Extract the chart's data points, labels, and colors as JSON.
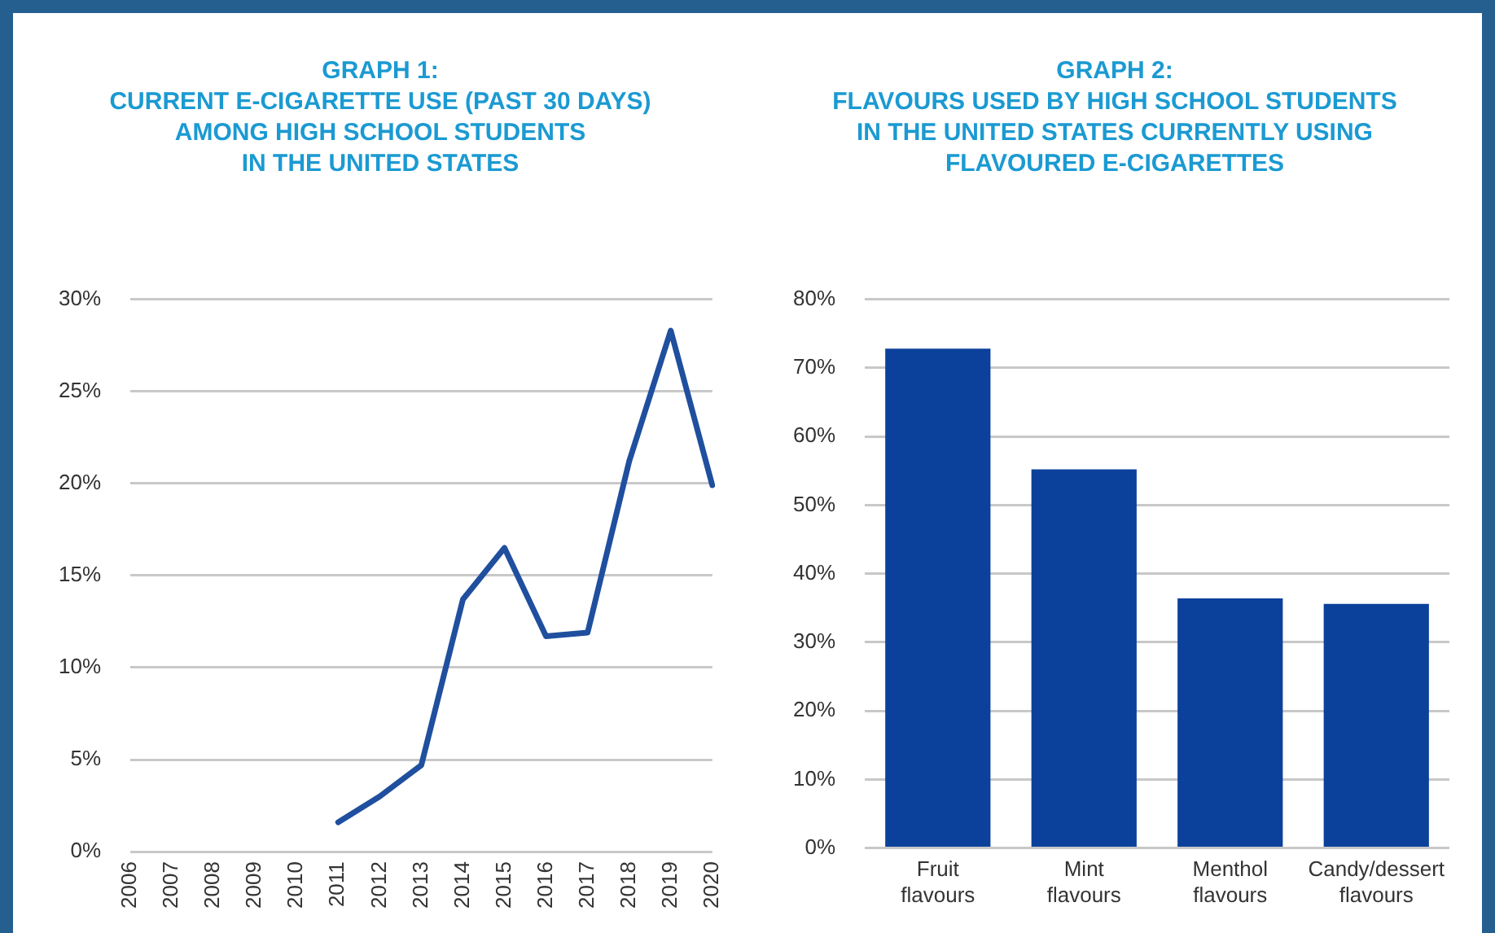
{
  "chart_data": [
    {
      "type": "line",
      "title": "GRAPH 1:\nCURRENT E-CIGARETTE USE (PAST 30 DAYS)\nAMONG HIGH SCHOOL STUDENTS\nIN THE UNITED STATES",
      "categories": [
        "2006",
        "2007",
        "2008",
        "2009",
        "2010",
        "2011",
        "2012",
        "2013",
        "2014",
        "2015",
        "2016",
        "2017",
        "2018",
        "2019",
        "2020"
      ],
      "series": [
        {
          "color": "#1f4f9e",
          "values": [
            null,
            null,
            null,
            null,
            null,
            1.6,
            3.0,
            4.7,
            13.7,
            16.5,
            11.7,
            11.9,
            21.2,
            28.3,
            19.9
          ]
        }
      ],
      "ylim": [
        0,
        30
      ],
      "yticks": [
        {
          "value": 0,
          "label": "0%"
        },
        {
          "value": 5,
          "label": "5%"
        },
        {
          "value": 10,
          "label": "10%"
        },
        {
          "value": 15,
          "label": "15%"
        },
        {
          "value": 20,
          "label": "20%"
        },
        {
          "value": 25,
          "label": "25%"
        },
        {
          "value": 30,
          "label": "30%"
        }
      ],
      "grid": "y",
      "marker": "none",
      "line_style": "solid"
    },
    {
      "type": "bar",
      "title": "GRAPH 2:\nFLAVOURS USED BY HIGH SCHOOL STUDENTS\nIN THE UNITED STATES CURRENTLY USING\nFLAVOURED E-CIGARETTES",
      "categories": [
        "Fruit\nflavours",
        "Mint\nflavours",
        "Menthol\nflavours",
        "Candy/dessert\nflavours"
      ],
      "series": [
        {
          "color": "#0b419b",
          "values": [
            72.8,
            55.2,
            36.4,
            35.6
          ]
        }
      ],
      "ylim": [
        0,
        80
      ],
      "yticks": [
        {
          "value": 0,
          "label": "0%"
        },
        {
          "value": 10,
          "label": "10%"
        },
        {
          "value": 20,
          "label": "20%"
        },
        {
          "value": 30,
          "label": "30%"
        },
        {
          "value": 40,
          "label": "40%"
        },
        {
          "value": 50,
          "label": "50%"
        },
        {
          "value": 60,
          "label": "60%"
        },
        {
          "value": 70,
          "label": "70%"
        },
        {
          "value": 80,
          "label": "80%"
        }
      ],
      "grid": "y"
    }
  ]
}
